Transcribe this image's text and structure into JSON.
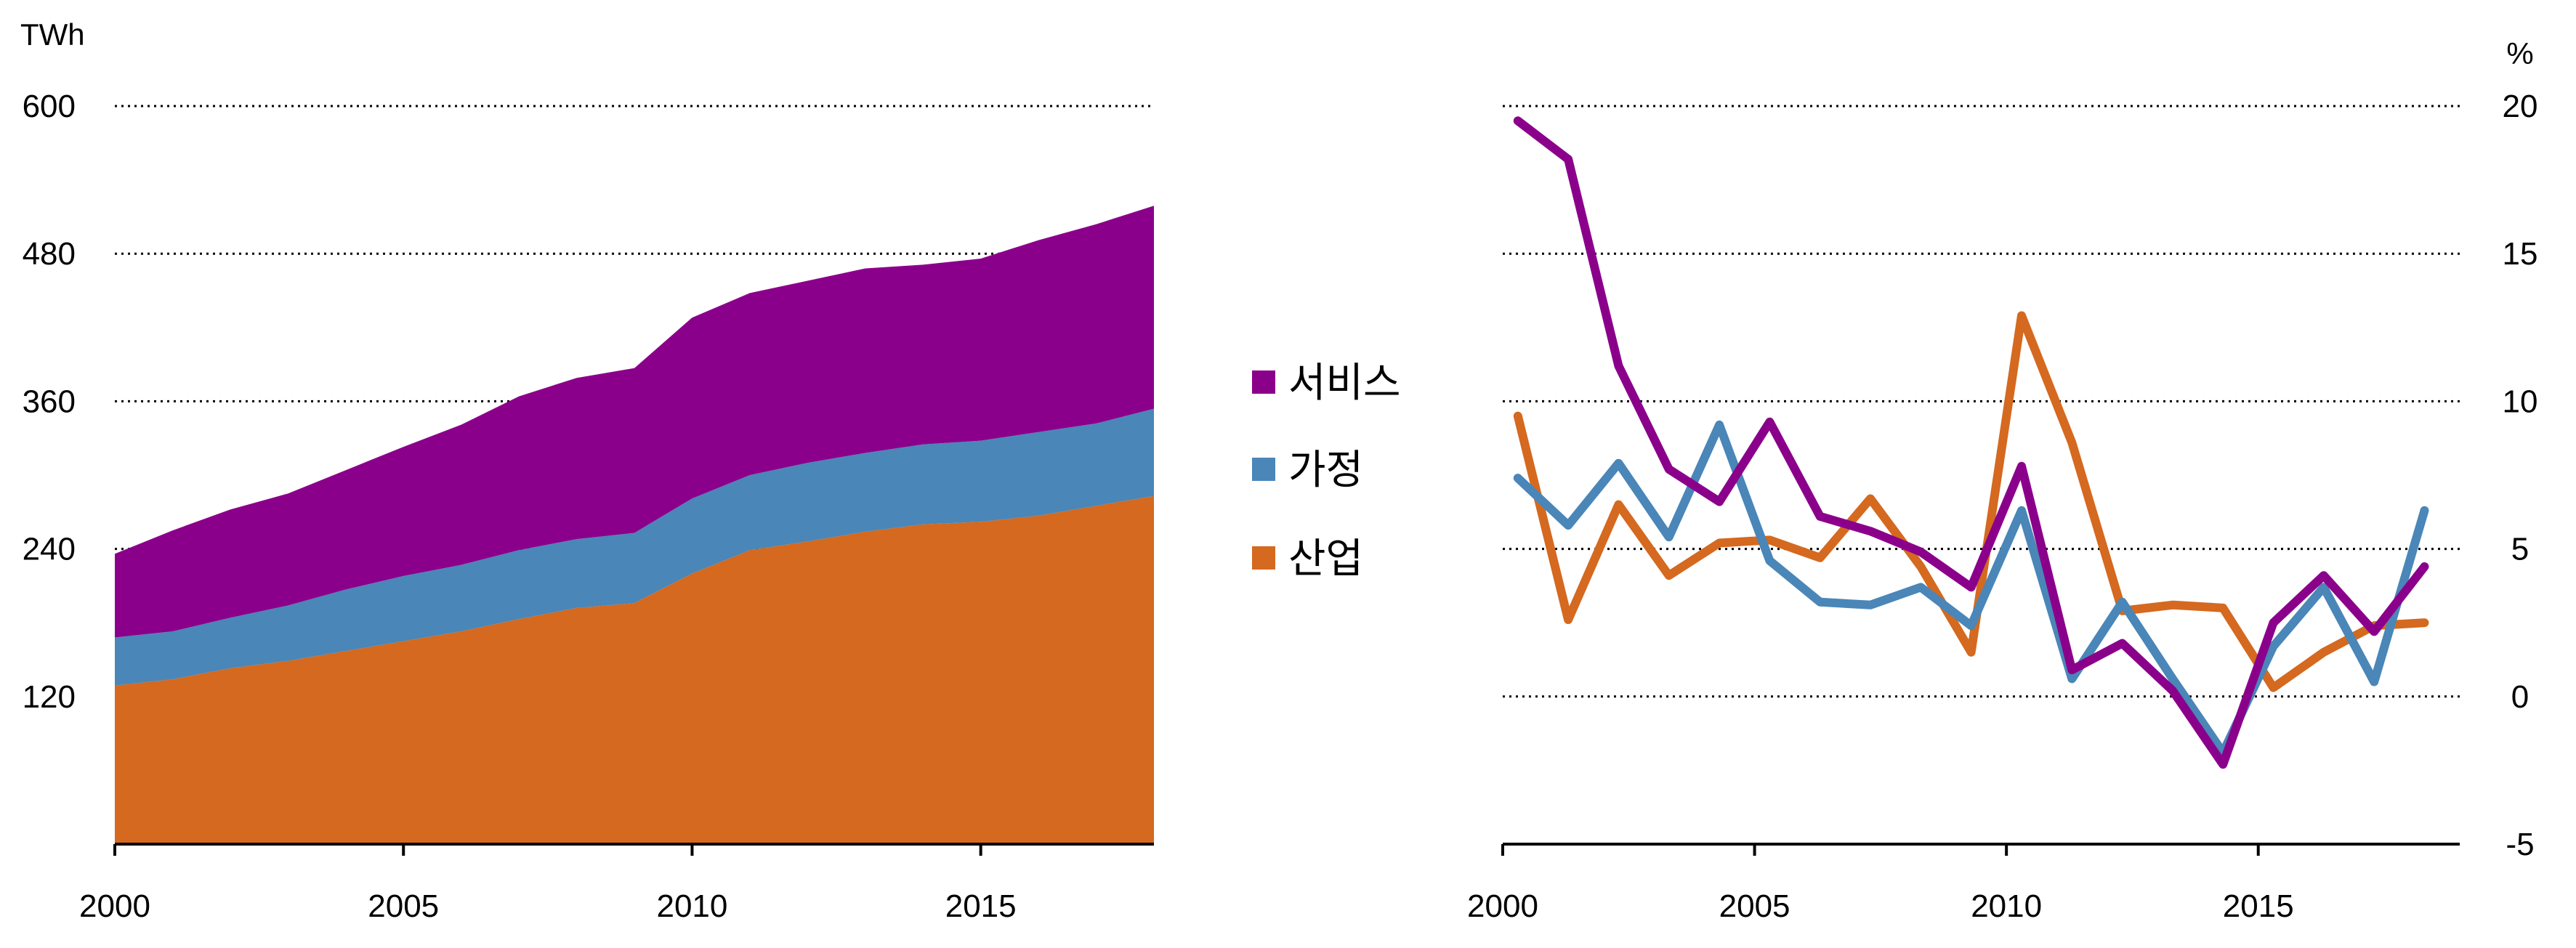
{
  "chart_data": [
    {
      "type": "area",
      "stacked": true,
      "ylabel": "TWh",
      "ylim": [
        0,
        600
      ],
      "yticks": [
        120,
        240,
        360,
        480,
        600
      ],
      "xlim": [
        2000,
        2018
      ],
      "xticks": [
        2000,
        2005,
        2010,
        2015
      ],
      "grid": true,
      "legend_position": "right",
      "x": [
        2000,
        2001,
        2002,
        2003,
        2004,
        2005,
        2006,
        2007,
        2008,
        2009,
        2010,
        2011,
        2012,
        2013,
        2014,
        2015,
        2016,
        2017,
        2018
      ],
      "series": [
        {
          "name": "산업",
          "color": "#d4691f",
          "values": [
            129,
            134,
            143,
            149,
            157,
            165,
            173,
            183,
            192,
            196,
            220,
            239,
            246,
            254,
            260,
            262,
            267,
            275,
            283
          ]
        },
        {
          "name": "가정",
          "color": "#4a86b8",
          "values": [
            39,
            39,
            41,
            45,
            50,
            53,
            54,
            56,
            56,
            57,
            61,
            61,
            64,
            64,
            65,
            66,
            68,
            67,
            71
          ]
        },
        {
          "name": "서비스",
          "color": "#8b008b",
          "values": [
            68,
            82,
            88,
            91,
            97,
            105,
            114,
            125,
            131,
            134,
            147,
            148,
            148,
            150,
            146,
            148,
            156,
            162,
            165
          ]
        }
      ]
    },
    {
      "type": "line",
      "ylabel": "%",
      "ylim": [
        -5,
        20
      ],
      "yticks": [
        -5,
        0,
        5,
        10,
        15,
        20
      ],
      "xlim": [
        2000,
        2019
      ],
      "xticks": [
        2000,
        2005,
        2010,
        2015
      ],
      "grid": true,
      "x": [
        2000,
        2001,
        2002,
        2003,
        2004,
        2005,
        2006,
        2007,
        2008,
        2009,
        2010,
        2011,
        2012,
        2013,
        2014,
        2015,
        2016,
        2017,
        2018
      ],
      "series": [
        {
          "name": "서비스",
          "color": "#8b008b",
          "values": [
            19.5,
            18.2,
            11.2,
            7.7,
            6.6,
            9.3,
            6.1,
            5.6,
            4.9,
            3.7,
            7.8,
            0.9,
            1.8,
            0.2,
            -2.3,
            2.5,
            4.1,
            2.2,
            4.4
          ]
        },
        {
          "name": "가정",
          "color": "#4a86b8",
          "values": [
            7.4,
            5.8,
            7.9,
            5.4,
            9.2,
            4.6,
            3.2,
            3.1,
            3.7,
            2.4,
            6.3,
            0.6,
            3.2,
            0.6,
            -1.9,
            1.7,
            3.7,
            0.5,
            6.3
          ]
        },
        {
          "name": "산업",
          "color": "#d4691f",
          "values": [
            9.5,
            2.6,
            6.5,
            4.1,
            5.2,
            5.3,
            4.7,
            6.7,
            4.4,
            1.5,
            12.9,
            8.6,
            2.9,
            3.1,
            3.0,
            0.3,
            1.5,
            2.4,
            2.5
          ]
        }
      ]
    }
  ],
  "legend": {
    "items": [
      {
        "label": "서비스",
        "color": "#8b008b"
      },
      {
        "label": "가정",
        "color": "#4a86b8"
      },
      {
        "label": "산업",
        "color": "#d4691f"
      }
    ]
  }
}
